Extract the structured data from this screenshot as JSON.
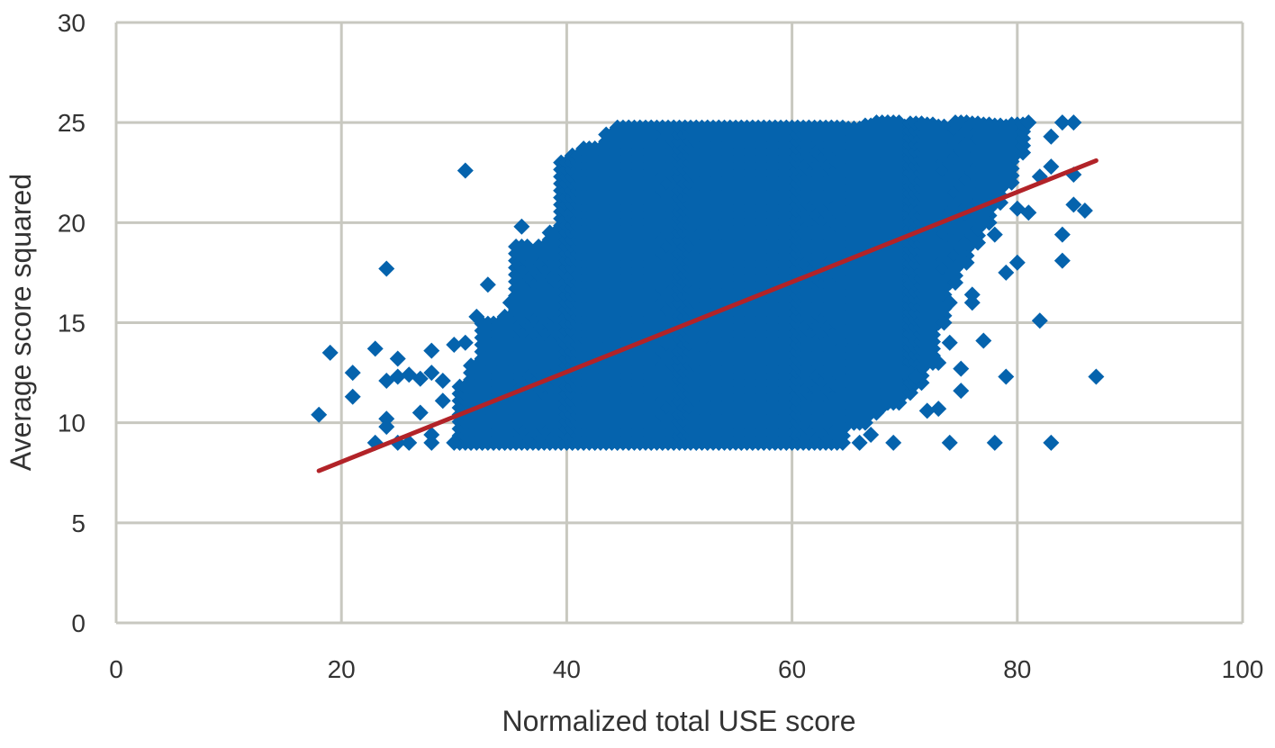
{
  "chart_data": {
    "type": "scatter",
    "title": "",
    "xlabel": "Normalized total USE score",
    "ylabel": "Average score squared",
    "xlim": [
      0,
      100
    ],
    "ylim": [
      0,
      30
    ],
    "xticks": [
      "0",
      "20",
      "40",
      "60",
      "80",
      "100"
    ],
    "yticks": [
      "0",
      "5",
      "10",
      "15",
      "20",
      "25",
      "30"
    ],
    "grid": true,
    "legend": "none",
    "marker_color": "#0563ad",
    "trend_color": "#b22328",
    "trendline": {
      "x": [
        18,
        87
      ],
      "y": [
        7.6,
        23.1
      ]
    },
    "dense_columns": [
      [
        31,
        9,
        12
      ],
      [
        32,
        9,
        13
      ],
      [
        33,
        9,
        15
      ],
      [
        34,
        9,
        15
      ],
      [
        35,
        9,
        15.5
      ],
      [
        36,
        9,
        19
      ],
      [
        37,
        9,
        18.5
      ],
      [
        38,
        9,
        19
      ],
      [
        39,
        9,
        19.5
      ],
      [
        40,
        9,
        23
      ],
      [
        41,
        9,
        23.5
      ],
      [
        42,
        9,
        24
      ],
      [
        43,
        9,
        24
      ],
      [
        44,
        9,
        24.5
      ],
      [
        45,
        9,
        25
      ],
      [
        46,
        9,
        25
      ],
      [
        47,
        9,
        25
      ],
      [
        48,
        9,
        25
      ],
      [
        49,
        9,
        25
      ],
      [
        50,
        9,
        25
      ],
      [
        51,
        9,
        25
      ],
      [
        52,
        9,
        25
      ],
      [
        53,
        9,
        25
      ],
      [
        54,
        9,
        25
      ],
      [
        55,
        9,
        25
      ],
      [
        56,
        9,
        25
      ],
      [
        57,
        9,
        25
      ],
      [
        58,
        9,
        25
      ],
      [
        59,
        9,
        25
      ],
      [
        60,
        9,
        25
      ],
      [
        61,
        9,
        25
      ],
      [
        62,
        9,
        25
      ],
      [
        63,
        9,
        25
      ],
      [
        64,
        9,
        25
      ],
      [
        65,
        10,
        25
      ],
      [
        66,
        10,
        25
      ],
      [
        67,
        10.5,
        25
      ],
      [
        68,
        11,
        25
      ],
      [
        69,
        11,
        25
      ],
      [
        70,
        11.5,
        25
      ],
      [
        71,
        12,
        25
      ],
      [
        72,
        13,
        25
      ],
      [
        73,
        15,
        25
      ],
      [
        74,
        17,
        25
      ],
      [
        75,
        18,
        25
      ],
      [
        76,
        19,
        25
      ],
      [
        77,
        20,
        25
      ],
      [
        78,
        21,
        25
      ],
      [
        79,
        22,
        25
      ],
      [
        80,
        23.5,
        25
      ]
    ],
    "points": [
      [
        18,
        10.4
      ],
      [
        19,
        13.5
      ],
      [
        21,
        12.5
      ],
      [
        21,
        11.3
      ],
      [
        23,
        9
      ],
      [
        23,
        13.7
      ],
      [
        24,
        17.7
      ],
      [
        24,
        12.1
      ],
      [
        24,
        10.2
      ],
      [
        24,
        9.8
      ],
      [
        25,
        13.2
      ],
      [
        25,
        12.3
      ],
      [
        25,
        9
      ],
      [
        26,
        12.4
      ],
      [
        26,
        9
      ],
      [
        27,
        12.2
      ],
      [
        27,
        10.5
      ],
      [
        28,
        13.6
      ],
      [
        28,
        12.5
      ],
      [
        28,
        9.4
      ],
      [
        28,
        9
      ],
      [
        29,
        11.1
      ],
      [
        29,
        12.1
      ],
      [
        30,
        13.9
      ],
      [
        30,
        9
      ],
      [
        31,
        22.6
      ],
      [
        31,
        14
      ],
      [
        32,
        15.3
      ],
      [
        33,
        16.9
      ],
      [
        35,
        16
      ],
      [
        36,
        19.8
      ],
      [
        74,
        9
      ],
      [
        78,
        9
      ],
      [
        83,
        9
      ],
      [
        87,
        12.3
      ],
      [
        79,
        12.3
      ],
      [
        82,
        15.1
      ],
      [
        84,
        18.1
      ],
      [
        84,
        19.4
      ],
      [
        85,
        20.9
      ],
      [
        86,
        20.6
      ],
      [
        80,
        18
      ],
      [
        79,
        17.5
      ],
      [
        80,
        20.7
      ],
      [
        81,
        20.5
      ],
      [
        82,
        22.3
      ],
      [
        83,
        22.8
      ],
      [
        85,
        22.4
      ],
      [
        83,
        24.3
      ],
      [
        84,
        25
      ],
      [
        85,
        25
      ],
      [
        81,
        25
      ],
      [
        77,
        14.1
      ],
      [
        75,
        12.7
      ],
      [
        75,
        11.6
      ],
      [
        76,
        16
      ],
      [
        76,
        16.4
      ],
      [
        78,
        19.4
      ],
      [
        74,
        14
      ],
      [
        74,
        16
      ],
      [
        72,
        10.6
      ],
      [
        69,
        9
      ],
      [
        67,
        9.4
      ],
      [
        66,
        9
      ],
      [
        68,
        10.8
      ],
      [
        70,
        12.5
      ],
      [
        73,
        10.7
      ],
      [
        71,
        12.3
      ],
      [
        72,
        14
      ],
      [
        73,
        13
      ]
    ]
  }
}
